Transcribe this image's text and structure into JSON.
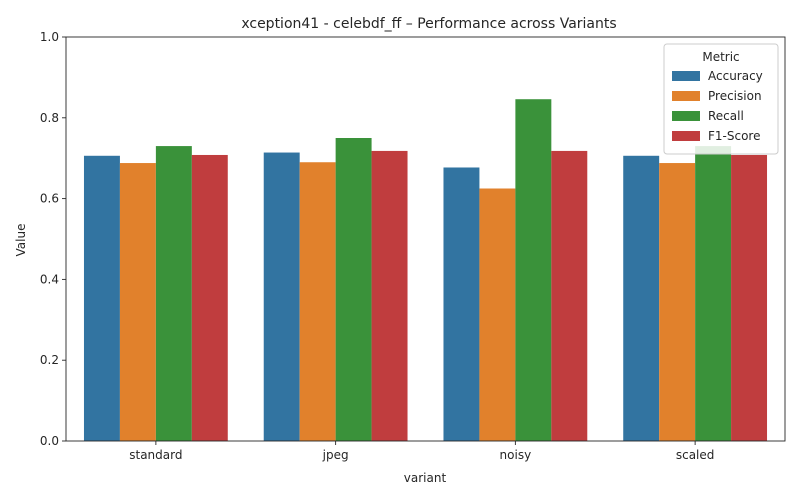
{
  "chart_data": {
    "type": "bar",
    "title": "xception41 - celebdf_ff – Performance across Variants",
    "xlabel": "variant",
    "ylabel": "Value",
    "ylim": [
      0,
      1.0
    ],
    "yticks": [
      "0.0",
      "0.2",
      "0.4",
      "0.6",
      "0.8",
      "1.0"
    ],
    "categories": [
      "standard",
      "jpeg",
      "noisy",
      "scaled"
    ],
    "legend_title": "Metric",
    "legend_position": "top-right",
    "grid": false,
    "series": [
      {
        "name": "Accuracy",
        "color": "#3274a1",
        "values": [
          0.706,
          0.714,
          0.677,
          0.706
        ]
      },
      {
        "name": "Precision",
        "color": "#e1812c",
        "values": [
          0.688,
          0.69,
          0.625,
          0.688
        ]
      },
      {
        "name": "Recall",
        "color": "#3a923a",
        "values": [
          0.73,
          0.75,
          0.846,
          0.73
        ]
      },
      {
        "name": "F1-Score",
        "color": "#c03d3e",
        "values": [
          0.708,
          0.718,
          0.718,
          0.708
        ]
      }
    ]
  }
}
